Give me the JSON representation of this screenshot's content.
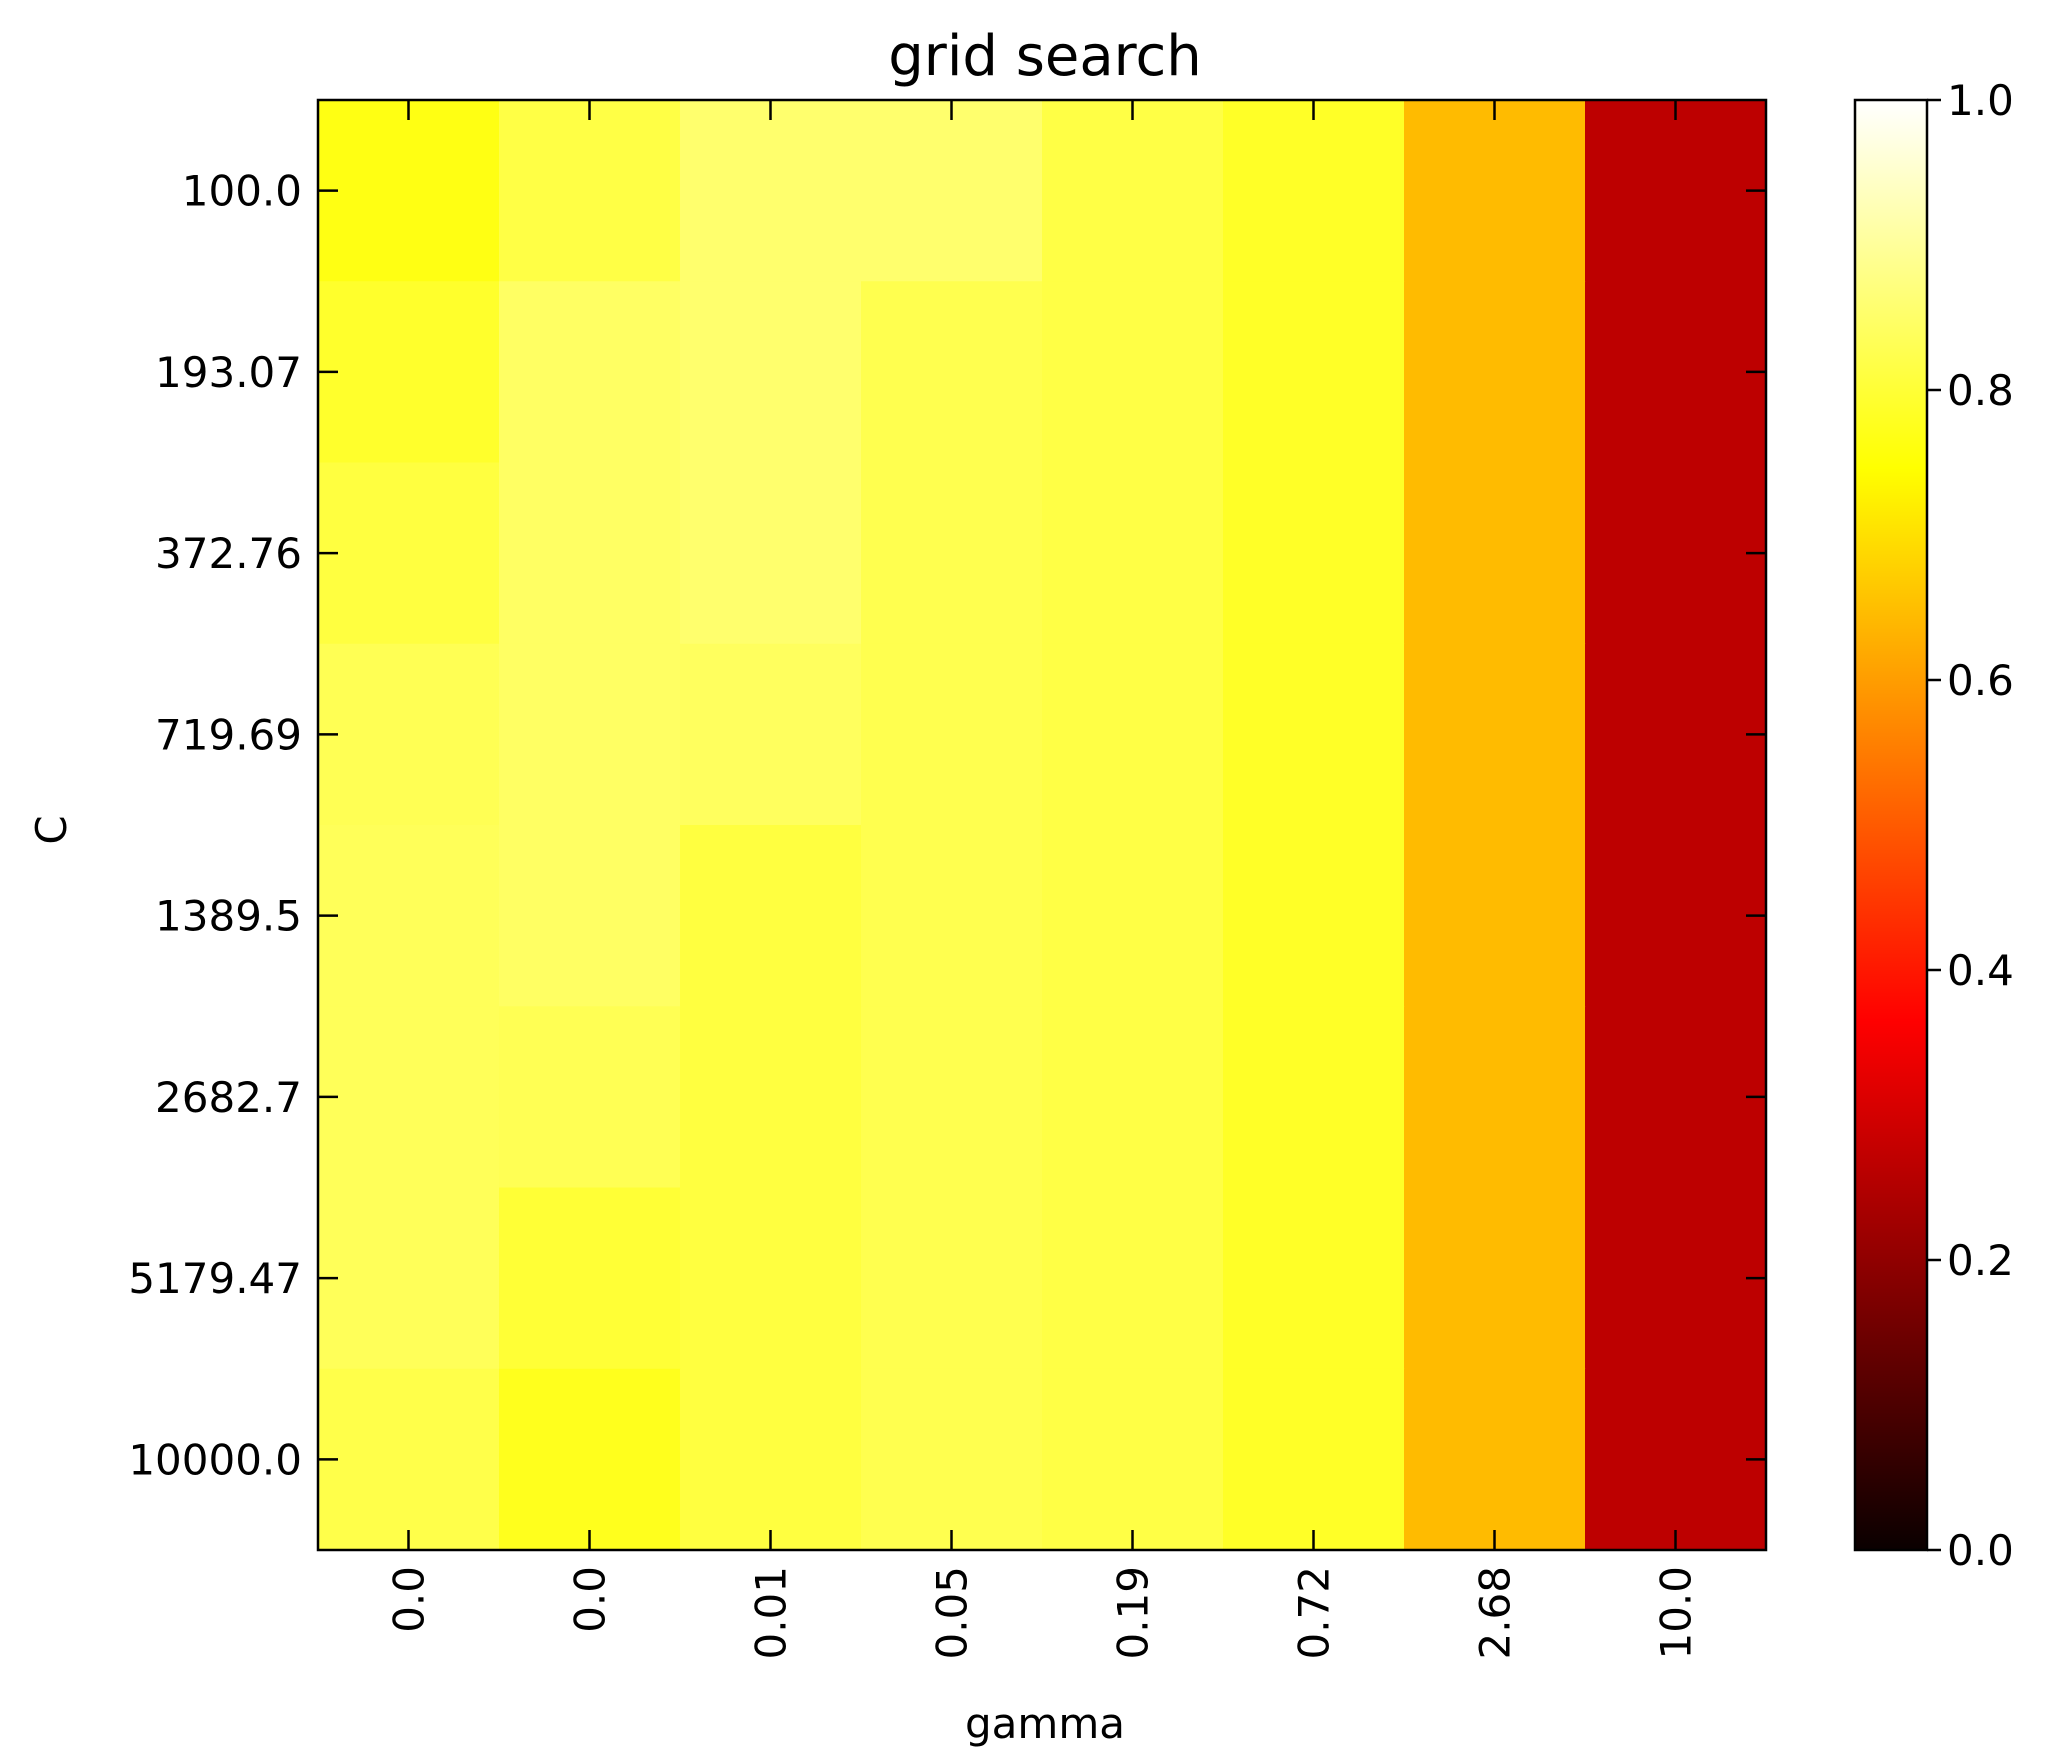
{
  "chart_data": {
    "type": "heatmap",
    "title": "grid search",
    "xlabel": "gamma",
    "ylabel": "C",
    "x_tick_labels": [
      "0.0",
      "0.0",
      "0.01",
      "0.05",
      "0.19",
      "0.72",
      "2.68",
      "10.0"
    ],
    "y_tick_labels": [
      "100.0",
      "193.07",
      "372.76",
      "719.69",
      "1389.5",
      "2682.7",
      "5179.47",
      "10000.0"
    ],
    "values": [
      [
        0.765,
        0.815,
        0.855,
        0.855,
        0.815,
        0.785,
        0.645,
        0.255
      ],
      [
        0.79,
        0.845,
        0.855,
        0.825,
        0.815,
        0.785,
        0.645,
        0.255
      ],
      [
        0.81,
        0.845,
        0.855,
        0.825,
        0.815,
        0.785,
        0.645,
        0.255
      ],
      [
        0.83,
        0.845,
        0.84,
        0.825,
        0.815,
        0.785,
        0.645,
        0.255
      ],
      [
        0.835,
        0.845,
        0.81,
        0.825,
        0.815,
        0.785,
        0.645,
        0.255
      ],
      [
        0.835,
        0.83,
        0.81,
        0.825,
        0.815,
        0.785,
        0.645,
        0.255
      ],
      [
        0.835,
        0.8,
        0.81,
        0.825,
        0.815,
        0.785,
        0.645,
        0.255
      ],
      [
        0.82,
        0.775,
        0.81,
        0.825,
        0.815,
        0.785,
        0.645,
        0.255
      ]
    ],
    "colormap": "hot",
    "colorbar": {
      "range": [
        0.0,
        1.0
      ],
      "tick_labels": [
        "0.0",
        "0.2",
        "0.4",
        "0.6",
        "0.8",
        "1.0"
      ],
      "tick_values": [
        0.0,
        0.2,
        0.4,
        0.6,
        0.8,
        1.0
      ]
    },
    "grid": false
  }
}
